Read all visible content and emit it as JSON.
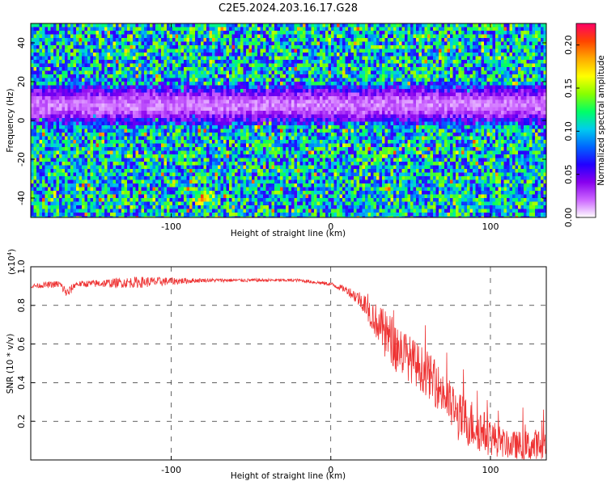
{
  "title": "C2E5.2024.203.16.17.G28",
  "chart_data": [
    {
      "type": "heatmap",
      "description": "Spectrogram: normalized spectral amplitude vs height of straight line and frequency",
      "xlabel": "Height of straight line (km)",
      "ylabel": "Frequency (Hz)",
      "xlim": [
        -188,
        135
      ],
      "ylim": [
        -50,
        50
      ],
      "xticks": [
        -100,
        0,
        100
      ],
      "yticks": [
        -40,
        -20,
        0,
        20,
        40
      ],
      "colorbar": {
        "label": "Normalized spectral amplitude",
        "range": [
          0.0,
          0.225
        ],
        "ticks": [
          "0.00",
          "0.05",
          "0.10",
          "0.15",
          "0.20"
        ],
        "colors": [
          "#ffffff",
          "#cc66ff",
          "#8800ee",
          "#2200ff",
          "#0066ff",
          "#00ccee",
          "#00ff66",
          "#88ff00",
          "#ffff00",
          "#ffaa00",
          "#ff4400",
          "#ff0066"
        ]
      },
      "features": {
        "low_amplitude_band_center_hz": 8,
        "low_amplitude_band_halfwidth_hz": 12,
        "hotspot": {
          "x": -80,
          "y": -40
        }
      }
    },
    {
      "type": "line",
      "xlabel": "Height of straight line (km)",
      "ylabel": "SNR (10 * v/v)",
      "yscale_label": "(x10",
      "yscale_exp": "4",
      "yscale_close": ")",
      "xlim": [
        -188,
        135
      ],
      "ylim": [
        0.0,
        1.0
      ],
      "xticks": [
        -100,
        0,
        100
      ],
      "yticks": [
        "0.2",
        "0.4",
        "0.6",
        "0.8",
        "1.0"
      ],
      "color": "#ee3333",
      "envelope": {
        "x": [
          -188,
          -170,
          -165,
          -160,
          -120,
          -80,
          -20,
          0,
          10,
          20,
          30,
          40,
          50,
          60,
          70,
          80,
          90,
          100,
          110,
          120,
          135
        ],
        "base": [
          0.9,
          0.91,
          0.86,
          0.91,
          0.92,
          0.93,
          0.93,
          0.91,
          0.88,
          0.82,
          0.7,
          0.6,
          0.52,
          0.45,
          0.35,
          0.22,
          0.18,
          0.12,
          0.08,
          0.07,
          0.07
        ],
        "noise": [
          0.01,
          0.02,
          0.03,
          0.015,
          0.03,
          0.01,
          0.008,
          0.01,
          0.02,
          0.05,
          0.1,
          0.14,
          0.12,
          0.12,
          0.12,
          0.13,
          0.13,
          0.1,
          0.07,
          0.08,
          0.1
        ]
      }
    }
  ]
}
